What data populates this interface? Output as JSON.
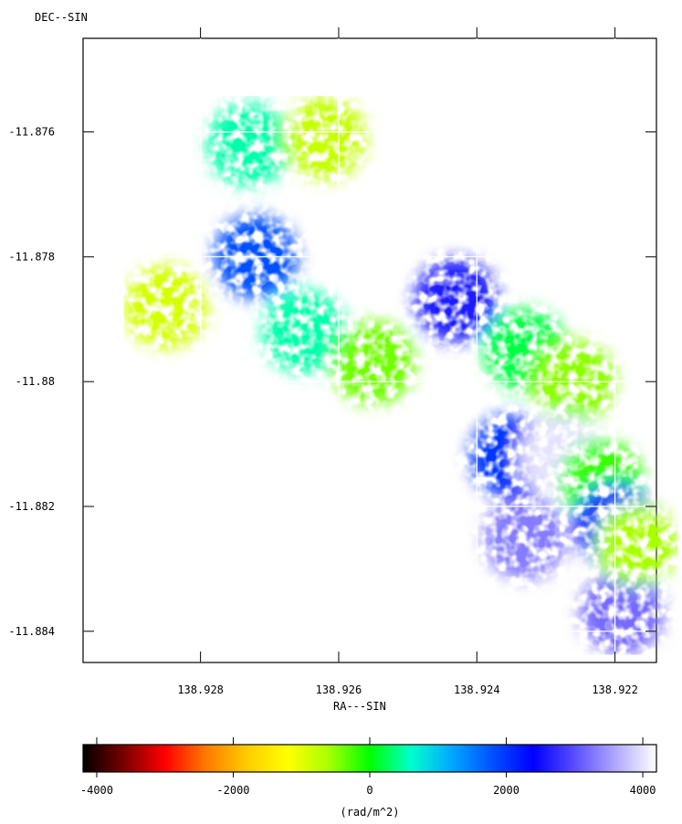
{
  "chart_data": [
    {
      "type": "heatmap",
      "title": "",
      "ylabel": "DEC--SIN",
      "xlabel": "RA---SIN",
      "x_ticks": [
        138.928,
        138.926,
        138.924,
        138.922
      ],
      "x_tick_labels": [
        "138.928",
        "138.926",
        "138.924",
        "138.922"
      ],
      "y_ticks": [
        -11.876,
        -11.878,
        -11.88,
        -11.882,
        -11.884
      ],
      "y_tick_labels": [
        "-11.876",
        "-11.878",
        "-11.88",
        "-11.882",
        "-11.884"
      ],
      "x_range": [
        138.9297,
        138.9214
      ],
      "y_range": [
        -11.8745,
        -11.8845
      ],
      "grid": true,
      "regions": [
        {
          "ra": 138.9273,
          "dec": -11.8762,
          "value": 500
        },
        {
          "ra": 138.9262,
          "dec": -11.8761,
          "value": -800
        },
        {
          "ra": 138.9272,
          "dec": -11.878,
          "value": 1800
        },
        {
          "ra": 138.9265,
          "dec": -11.8792,
          "value": 500
        },
        {
          "ra": 138.9285,
          "dec": -11.8788,
          "value": -900
        },
        {
          "ra": 138.9255,
          "dec": -11.8797,
          "value": -400
        },
        {
          "ra": 138.9243,
          "dec": -11.8787,
          "value": 2600
        },
        {
          "ra": 138.9233,
          "dec": -11.8795,
          "value": 200
        },
        {
          "ra": 138.9226,
          "dec": -11.88,
          "value": -500
        },
        {
          "ra": 138.9235,
          "dec": -11.8812,
          "value": 2000
        },
        {
          "ra": 138.9228,
          "dec": -11.8812,
          "value": 4000
        },
        {
          "ra": 138.9222,
          "dec": -11.8816,
          "value": -200
        },
        {
          "ra": 138.9233,
          "dec": -11.8825,
          "value": 3300
        },
        {
          "ra": 138.922,
          "dec": -11.8823,
          "value": 2500
        },
        {
          "ra": 138.9219,
          "dec": -11.8837,
          "value": 3200
        },
        {
          "ra": 138.9217,
          "dec": -11.8826,
          "value": -600
        }
      ]
    },
    {
      "type": "colorbar",
      "label": "(rad/m^2)",
      "range": [
        -4200,
        4200
      ],
      "ticks": [
        -4000,
        -2000,
        0,
        2000,
        4000
      ],
      "tick_labels": [
        "-4000",
        "-2000",
        "0",
        "2000",
        "4000"
      ],
      "colors": [
        "#000000",
        "#7a0000",
        "#ff0000",
        "#ff7a00",
        "#ffcc00",
        "#ffff00",
        "#a8ff00",
        "#00ff00",
        "#00ffcc",
        "#00a8ff",
        "#0050ff",
        "#0000ff",
        "#5a4dff",
        "#b0a8ff",
        "#ffffff"
      ]
    }
  ]
}
